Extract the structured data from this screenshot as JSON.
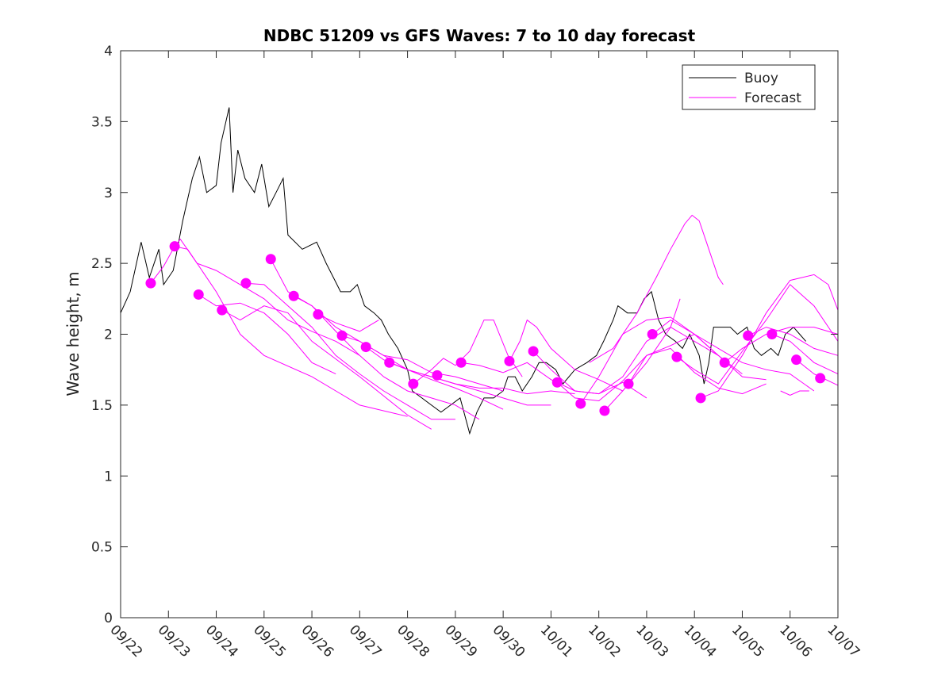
{
  "chart_data": {
    "type": "line",
    "title": "NDBC 51209 vs GFS Waves: 7 to 10 day forecast",
    "xlabel": "",
    "ylabel": "Wave height, m",
    "xlim": [
      0,
      15
    ],
    "ylim": [
      0,
      4
    ],
    "x_units": "days since 09/22",
    "x_tick_labels": [
      "09/22",
      "09/23",
      "09/24",
      "09/25",
      "09/26",
      "09/27",
      "09/28",
      "09/29",
      "09/30",
      "10/01",
      "10/02",
      "10/03",
      "10/04",
      "10/05",
      "10/06",
      "10/07"
    ],
    "y_ticks": [
      0,
      0.5,
      1,
      1.5,
      2,
      2.5,
      3,
      3.5,
      4
    ],
    "y_tick_labels": [
      "0",
      "0.5",
      "1",
      "1.5",
      "2",
      "2.5",
      "3",
      "3.5",
      "4"
    ],
    "grid": false,
    "legend": {
      "placement": "top-right",
      "entries": [
        "Buoy",
        "Forecast"
      ]
    },
    "colors": {
      "buoy": "#000000",
      "forecast": "#ff00ff"
    },
    "buoy": [
      [
        0,
        2.15
      ],
      [
        0.2,
        2.3
      ],
      [
        0.43,
        2.65
      ],
      [
        0.6,
        2.4
      ],
      [
        0.8,
        2.6
      ],
      [
        0.9,
        2.35
      ],
      [
        1.1,
        2.45
      ],
      [
        1.3,
        2.8
      ],
      [
        1.5,
        3.1
      ],
      [
        1.65,
        3.25
      ],
      [
        1.8,
        3.0
      ],
      [
        2.0,
        3.05
      ],
      [
        2.1,
        3.35
      ],
      [
        2.27,
        3.6
      ],
      [
        2.35,
        3.0
      ],
      [
        2.45,
        3.3
      ],
      [
        2.6,
        3.1
      ],
      [
        2.8,
        3.0
      ],
      [
        2.95,
        3.2
      ],
      [
        3.1,
        2.9
      ],
      [
        3.25,
        3.0
      ],
      [
        3.4,
        3.1
      ],
      [
        3.5,
        2.7
      ],
      [
        3.8,
        2.6
      ],
      [
        4.1,
        2.65
      ],
      [
        4.3,
        2.5
      ],
      [
        4.45,
        2.4
      ],
      [
        4.6,
        2.3
      ],
      [
        4.8,
        2.3
      ],
      [
        4.95,
        2.35
      ],
      [
        5.1,
        2.2
      ],
      [
        5.3,
        2.15
      ],
      [
        5.45,
        2.1
      ],
      [
        5.6,
        2.0
      ],
      [
        5.8,
        1.9
      ],
      [
        6.0,
        1.75
      ],
      [
        6.1,
        1.6
      ],
      [
        6.3,
        1.55
      ],
      [
        6.5,
        1.5
      ],
      [
        6.7,
        1.45
      ],
      [
        6.9,
        1.5
      ],
      [
        7.1,
        1.55
      ],
      [
        7.3,
        1.3
      ],
      [
        7.45,
        1.45
      ],
      [
        7.6,
        1.55
      ],
      [
        7.8,
        1.55
      ],
      [
        8.0,
        1.6
      ],
      [
        8.1,
        1.7
      ],
      [
        8.25,
        1.7
      ],
      [
        8.4,
        1.6
      ],
      [
        8.6,
        1.7
      ],
      [
        8.75,
        1.8
      ],
      [
        8.9,
        1.8
      ],
      [
        9.1,
        1.75
      ],
      [
        9.25,
        1.65
      ],
      [
        9.5,
        1.75
      ],
      [
        9.75,
        1.8
      ],
      [
        9.95,
        1.85
      ],
      [
        10.1,
        1.95
      ],
      [
        10.3,
        2.1
      ],
      [
        10.4,
        2.2
      ],
      [
        10.6,
        2.15
      ],
      [
        10.8,
        2.15
      ],
      [
        10.95,
        2.25
      ],
      [
        11.1,
        2.3
      ],
      [
        11.25,
        2.1
      ],
      [
        11.4,
        2.0
      ],
      [
        11.6,
        1.95
      ],
      [
        11.75,
        1.9
      ],
      [
        11.9,
        2.0
      ],
      [
        12.1,
        1.85
      ],
      [
        12.2,
        1.65
      ],
      [
        12.3,
        1.8
      ],
      [
        12.4,
        2.05
      ],
      [
        12.6,
        2.05
      ],
      [
        12.75,
        2.05
      ],
      [
        12.9,
        2.0
      ],
      [
        13.1,
        2.05
      ],
      [
        13.25,
        1.9
      ],
      [
        13.4,
        1.85
      ],
      [
        13.6,
        1.9
      ],
      [
        13.75,
        1.85
      ],
      [
        13.9,
        2.0
      ],
      [
        14.07,
        2.05
      ],
      [
        14.2,
        2.0
      ],
      [
        14.33,
        1.95
      ]
    ],
    "forecast_points": [
      [
        0.63,
        2.36
      ],
      [
        1.13,
        2.62
      ],
      [
        1.63,
        2.28
      ],
      [
        2.12,
        2.17
      ],
      [
        2.62,
        2.36
      ],
      [
        3.14,
        2.53
      ],
      [
        3.62,
        2.27
      ],
      [
        4.13,
        2.14
      ],
      [
        4.63,
        1.99
      ],
      [
        5.13,
        1.91
      ],
      [
        5.62,
        1.8
      ],
      [
        6.12,
        1.65
      ],
      [
        6.62,
        1.71
      ],
      [
        7.12,
        1.8
      ],
      [
        8.13,
        1.81
      ],
      [
        8.63,
        1.88
      ],
      [
        9.13,
        1.66
      ],
      [
        9.62,
        1.51
      ],
      [
        10.12,
        1.46
      ],
      [
        10.62,
        1.65
      ],
      [
        11.12,
        2.0
      ],
      [
        11.63,
        1.84
      ],
      [
        12.13,
        1.55
      ],
      [
        12.63,
        1.8
      ],
      [
        13.12,
        1.99
      ],
      [
        13.62,
        2.0
      ],
      [
        14.13,
        1.82
      ],
      [
        14.63,
        1.69
      ]
    ],
    "forecast_lines": [
      [
        [
          0.63,
          2.36
        ],
        [
          0.9,
          2.48
        ],
        [
          1.13,
          2.62
        ]
      ],
      [
        [
          1.13,
          2.62
        ],
        [
          1.25,
          2.67
        ],
        [
          1.6,
          2.5
        ],
        [
          2.0,
          2.45
        ],
        [
          2.5,
          2.35
        ],
        [
          3.0,
          2.25
        ],
        [
          3.5,
          2.1
        ],
        [
          4.0,
          2.02
        ],
        [
          4.5,
          1.95
        ],
        [
          5.0,
          1.85
        ]
      ],
      [
        [
          1.13,
          2.62
        ],
        [
          1.4,
          2.6
        ],
        [
          2.0,
          2.3
        ],
        [
          2.5,
          2.0
        ],
        [
          3.0,
          1.85
        ],
        [
          4.0,
          1.7
        ],
        [
          4.5,
          1.6
        ],
        [
          5.0,
          1.5
        ],
        [
          6.0,
          1.42
        ]
      ],
      [
        [
          1.63,
          2.28
        ],
        [
          2.0,
          2.2
        ],
        [
          2.5,
          2.22
        ],
        [
          3.0,
          2.15
        ],
        [
          3.5,
          2.0
        ],
        [
          4.0,
          1.8
        ],
        [
          4.5,
          1.72
        ]
      ],
      [
        [
          2.12,
          2.17
        ],
        [
          2.5,
          2.1
        ],
        [
          3.0,
          2.2
        ],
        [
          3.5,
          2.15
        ],
        [
          4.0,
          1.95
        ],
        [
          5.0,
          1.7
        ],
        [
          6.0,
          1.43
        ],
        [
          6.5,
          1.33
        ]
      ],
      [
        [
          2.62,
          2.36
        ],
        [
          3.0,
          2.35
        ],
        [
          3.5,
          2.2
        ],
        [
          4.0,
          2.05
        ],
        [
          4.5,
          1.85
        ],
        [
          5.0,
          1.72
        ],
        [
          5.5,
          1.6
        ],
        [
          6.0,
          1.5
        ],
        [
          6.5,
          1.4
        ],
        [
          7.0,
          1.4
        ]
      ],
      [
        [
          3.14,
          2.53
        ],
        [
          3.5,
          2.3
        ],
        [
          4.0,
          2.2
        ],
        [
          4.5,
          2.02
        ],
        [
          5.0,
          1.85
        ],
        [
          5.5,
          1.7
        ],
        [
          6.0,
          1.6
        ],
        [
          6.5,
          1.55
        ],
        [
          7.0,
          1.5
        ],
        [
          7.5,
          1.4
        ]
      ],
      [
        [
          3.62,
          2.27
        ],
        [
          4.0,
          2.2
        ],
        [
          4.5,
          2.05
        ],
        [
          5.0,
          1.95
        ],
        [
          5.5,
          1.85
        ],
        [
          6.0,
          1.75
        ],
        [
          6.5,
          1.68
        ],
        [
          7.0,
          1.62
        ],
        [
          7.5,
          1.55
        ],
        [
          8.0,
          1.47
        ]
      ],
      [
        [
          4.13,
          2.14
        ],
        [
          4.5,
          2.08
        ],
        [
          5.0,
          2.02
        ],
        [
          5.4,
          2.1
        ]
      ],
      [
        [
          4.63,
          1.99
        ],
        [
          5.0,
          1.95
        ],
        [
          5.5,
          1.85
        ],
        [
          6.0,
          1.82
        ],
        [
          6.5,
          1.73
        ],
        [
          7.0,
          1.7
        ],
        [
          7.5,
          1.65
        ],
        [
          8.0,
          1.6
        ]
      ],
      [
        [
          5.13,
          1.91
        ],
        [
          5.5,
          1.82
        ],
        [
          6.0,
          1.75
        ],
        [
          6.5,
          1.7
        ],
        [
          7.0,
          1.65
        ],
        [
          7.5,
          1.6
        ],
        [
          8.0,
          1.55
        ],
        [
          8.5,
          1.5
        ],
        [
          9.0,
          1.5
        ]
      ],
      [
        [
          5.62,
          1.8
        ],
        [
          6.0,
          1.75
        ],
        [
          6.5,
          1.7
        ],
        [
          7.0,
          1.65
        ],
        [
          7.5,
          1.62
        ],
        [
          8.0,
          1.62
        ],
        [
          8.5,
          1.58
        ],
        [
          9.0,
          1.6
        ],
        [
          9.5,
          1.58
        ]
      ],
      [
        [
          6.12,
          1.65
        ],
        [
          6.5,
          1.75
        ],
        [
          6.75,
          1.83
        ],
        [
          7.0,
          1.78
        ],
        [
          7.3,
          1.88
        ],
        [
          7.6,
          2.1
        ],
        [
          7.8,
          2.1
        ],
        [
          8.1,
          1.85
        ],
        [
          8.4,
          1.7
        ]
      ],
      [
        [
          7.12,
          1.8
        ],
        [
          7.5,
          1.78
        ],
        [
          8.0,
          1.73
        ],
        [
          8.5,
          1.8
        ],
        [
          9.0,
          1.68
        ],
        [
          9.5,
          1.6
        ],
        [
          10.0,
          1.58
        ],
        [
          10.5,
          1.66
        ],
        [
          11.0,
          1.55
        ]
      ],
      [
        [
          8.13,
          1.81
        ],
        [
          8.35,
          1.95
        ],
        [
          8.5,
          2.1
        ],
        [
          8.7,
          2.05
        ],
        [
          9.0,
          1.9
        ],
        [
          9.5,
          1.75
        ],
        [
          10.0,
          1.68
        ],
        [
          10.5,
          1.6
        ]
      ],
      [
        [
          8.63,
          1.88
        ],
        [
          9.0,
          1.75
        ],
        [
          9.5,
          1.6
        ],
        [
          10.0,
          1.58
        ],
        [
          10.5,
          1.7
        ],
        [
          11.0,
          1.95
        ],
        [
          11.5,
          2.05
        ],
        [
          12.0,
          1.95
        ],
        [
          12.5,
          1.85
        ]
      ],
      [
        [
          9.13,
          1.66
        ],
        [
          9.5,
          1.55
        ],
        [
          10.0,
          1.53
        ],
        [
          10.5,
          1.67
        ],
        [
          11.0,
          1.85
        ],
        [
          11.5,
          1.92
        ],
        [
          12.0,
          2.0
        ],
        [
          12.5,
          1.85
        ],
        [
          13.0,
          1.72
        ]
      ],
      [
        [
          9.62,
          1.51
        ],
        [
          10.0,
          1.7
        ],
        [
          10.5,
          2.0
        ],
        [
          11.0,
          2.1
        ],
        [
          11.5,
          2.12
        ],
        [
          12.0,
          2.0
        ],
        [
          12.5,
          1.85
        ],
        [
          13.0,
          1.7
        ],
        [
          13.5,
          1.68
        ]
      ],
      [
        [
          10.12,
          1.46
        ],
        [
          10.5,
          1.6
        ],
        [
          11.0,
          1.8
        ],
        [
          11.5,
          2.05
        ],
        [
          11.7,
          2.25
        ]
      ],
      [
        [
          9.8,
          1.8
        ],
        [
          10.3,
          1.9
        ],
        [
          10.8,
          2.15
        ],
        [
          11.2,
          2.4
        ],
        [
          11.5,
          2.6
        ],
        [
          11.8,
          2.78
        ],
        [
          11.95,
          2.84
        ],
        [
          12.1,
          2.8
        ],
        [
          12.3,
          2.6
        ],
        [
          12.5,
          2.4
        ],
        [
          12.6,
          2.35
        ]
      ],
      [
        [
          10.62,
          1.65
        ],
        [
          11.0,
          1.85
        ],
        [
          11.5,
          1.9
        ],
        [
          12.0,
          1.73
        ],
        [
          12.5,
          1.62
        ],
        [
          13.0,
          1.58
        ],
        [
          13.5,
          1.65
        ]
      ],
      [
        [
          11.12,
          2.0
        ],
        [
          11.5,
          2.1
        ],
        [
          12.0,
          2.0
        ],
        [
          12.5,
          1.9
        ],
        [
          13.0,
          1.8
        ],
        [
          13.5,
          1.75
        ],
        [
          14.0,
          1.72
        ],
        [
          14.5,
          1.6
        ]
      ],
      [
        [
          11.63,
          1.84
        ],
        [
          12.0,
          1.75
        ],
        [
          12.5,
          1.65
        ],
        [
          13.0,
          1.88
        ],
        [
          13.5,
          2.1
        ],
        [
          14.0,
          2.35
        ],
        [
          14.5,
          2.2
        ],
        [
          15.0,
          1.95
        ]
      ],
      [
        [
          12.13,
          1.55
        ],
        [
          12.5,
          1.6
        ],
        [
          13.0,
          1.85
        ],
        [
          13.5,
          2.15
        ],
        [
          14.0,
          2.38
        ],
        [
          14.5,
          2.42
        ],
        [
          14.8,
          2.35
        ],
        [
          15.0,
          2.17
        ]
      ],
      [
        [
          12.63,
          1.8
        ],
        [
          13.0,
          1.9
        ],
        [
          13.5,
          2.0
        ],
        [
          14.0,
          2.05
        ],
        [
          14.5,
          2.05
        ],
        [
          15.0,
          2.0
        ]
      ],
      [
        [
          13.12,
          1.99
        ],
        [
          13.5,
          2.05
        ],
        [
          14.0,
          2.0
        ],
        [
          14.5,
          1.9
        ],
        [
          15.0,
          1.85
        ]
      ],
      [
        [
          13.62,
          2.0
        ],
        [
          14.0,
          1.95
        ],
        [
          14.5,
          1.8
        ],
        [
          15.0,
          1.72
        ]
      ],
      [
        [
          14.13,
          1.82
        ],
        [
          14.5,
          1.72
        ],
        [
          15.0,
          1.64
        ]
      ],
      [
        [
          13.8,
          1.6
        ],
        [
          14.0,
          1.57
        ],
        [
          14.2,
          1.6
        ],
        [
          14.4,
          1.6
        ]
      ]
    ]
  }
}
